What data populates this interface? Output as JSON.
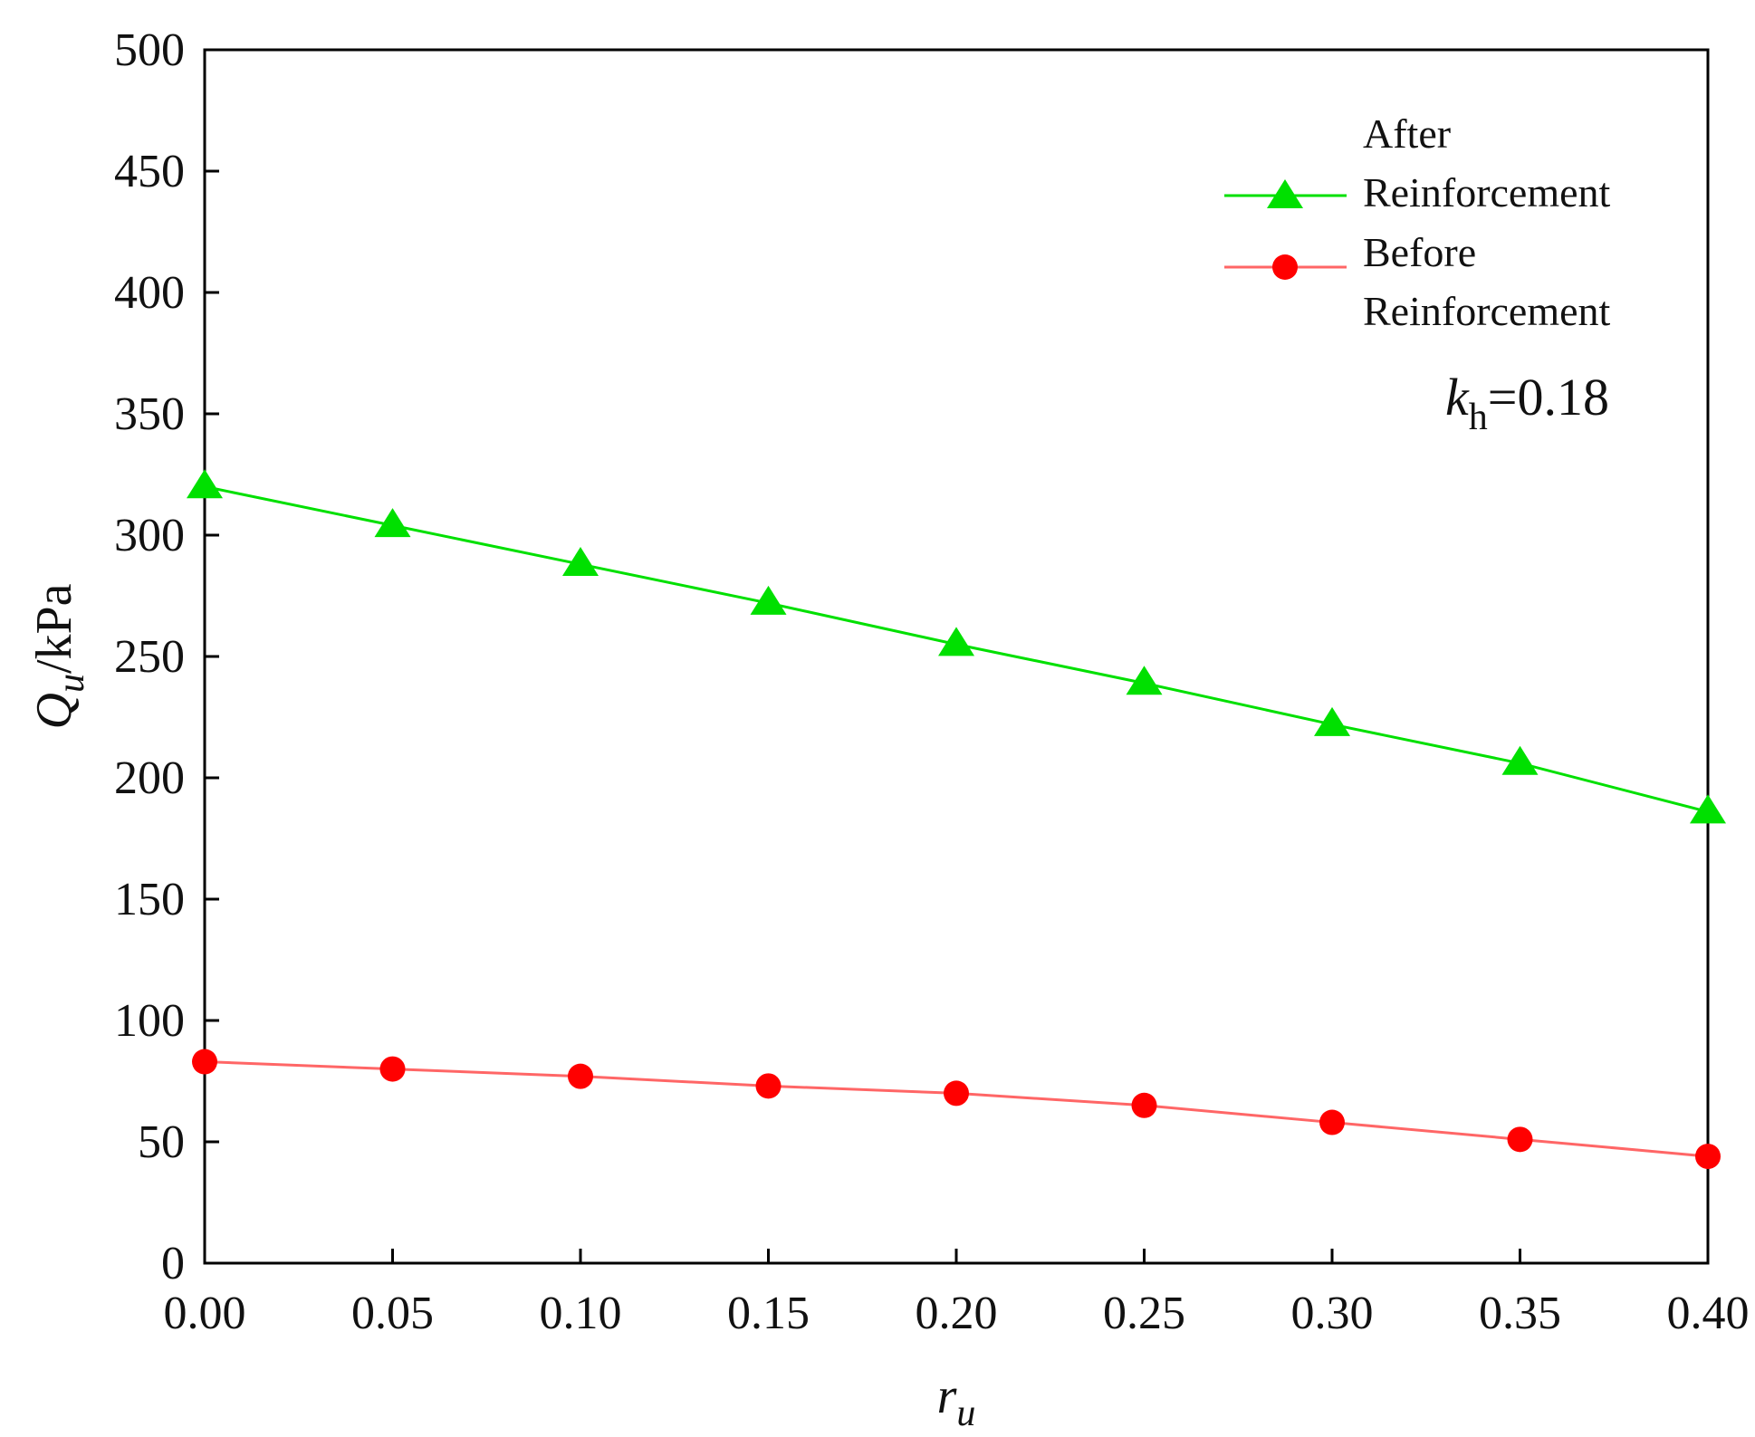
{
  "chart_data": {
    "type": "line",
    "title": "",
    "x": [
      0.0,
      0.05,
      0.1,
      0.15,
      0.2,
      0.25,
      0.3,
      0.35,
      0.4
    ],
    "x_tick_labels": [
      "0.00",
      "0.05",
      "0.10",
      "0.15",
      "0.20",
      "0.25",
      "0.30",
      "0.35",
      "0.40"
    ],
    "y_tick_labels": [
      "0",
      "50",
      "100",
      "150",
      "200",
      "250",
      "300",
      "350",
      "400",
      "450",
      "500"
    ],
    "xlim": [
      0.0,
      0.4
    ],
    "ylim": [
      0,
      500
    ],
    "xlabel": {
      "main": "r",
      "sub": "u"
    },
    "ylabel": {
      "main": "Q",
      "sub": "u",
      "unit": "/kPa"
    },
    "grid": false,
    "legend_position": "top-right",
    "series": [
      {
        "name": "After Reinforcement",
        "name_lines": [
          "After",
          "Reinforcement"
        ],
        "marker": "triangle",
        "color": "#00e000",
        "values": [
          320,
          304,
          288,
          272,
          255,
          239,
          222,
          206,
          186
        ]
      },
      {
        "name": "Before Reinforcement",
        "name_lines": [
          "Before",
          "Reinforcement"
        ],
        "marker": "circle",
        "color": "#ff0000",
        "line_color": "#ff6666",
        "values": [
          83,
          80,
          77,
          73,
          70,
          65,
          58,
          51,
          44
        ]
      }
    ],
    "annotation": {
      "var": "k",
      "sub": "h",
      "value": "=0.18"
    }
  }
}
